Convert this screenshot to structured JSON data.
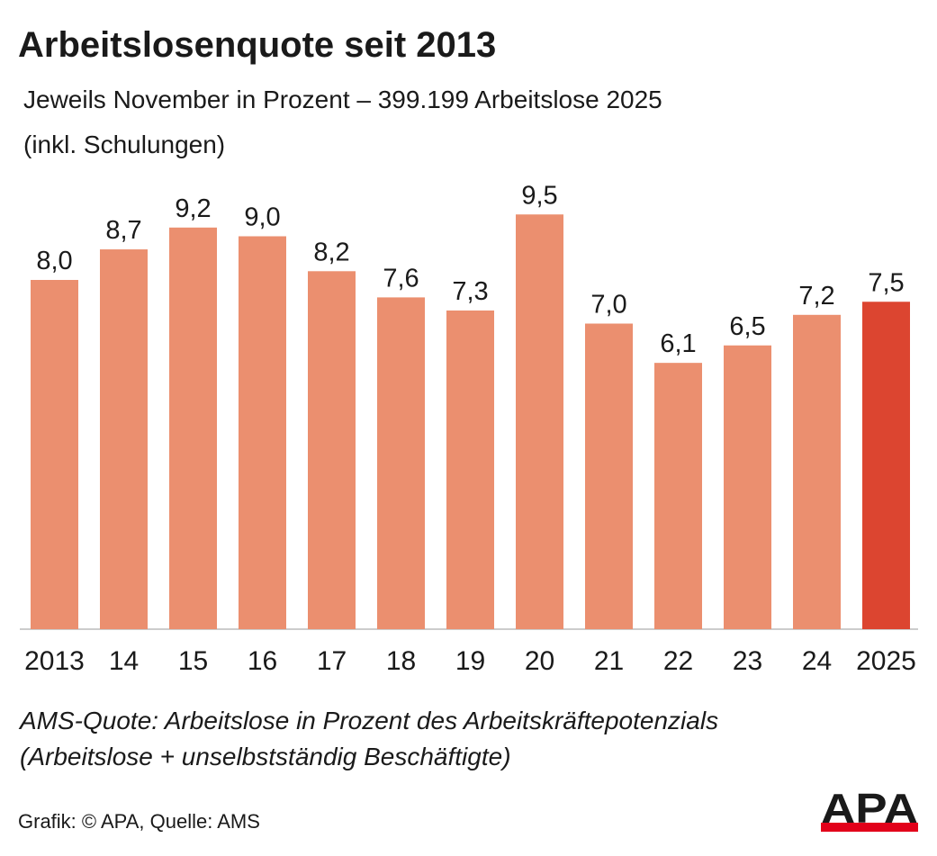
{
  "chart_data": {
    "type": "bar",
    "title": "Arbeitslosenquote seit 2013",
    "subtitle": [
      "Jeweils November in Prozent – 399.199 Arbeitslose 2025",
      "(inkl. Schulungen)"
    ],
    "categories": [
      "2013",
      "14",
      "15",
      "16",
      "17",
      "18",
      "19",
      "20",
      "21",
      "22",
      "23",
      "24",
      "2025"
    ],
    "values": [
      8.0,
      8.7,
      9.2,
      9.0,
      8.2,
      7.6,
      7.3,
      9.5,
      7.0,
      6.1,
      6.5,
      7.2,
      7.5
    ],
    "value_labels": [
      "8,0",
      "8,7",
      "9,2",
      "9,0",
      "8,2",
      "7,6",
      "7,3",
      "9,5",
      "7,0",
      "6,1",
      "6,5",
      "7,2",
      "7,5"
    ],
    "colors": [
      "#eb8f6f",
      "#eb8f6f",
      "#eb8f6f",
      "#eb8f6f",
      "#eb8f6f",
      "#eb8f6f",
      "#eb8f6f",
      "#eb8f6f",
      "#eb8f6f",
      "#eb8f6f",
      "#eb8f6f",
      "#eb8f6f",
      "#dc4530"
    ],
    "ylim": [
      0,
      10
    ],
    "footnote": [
      "AMS-Quote: Arbeitslose in Prozent des Arbeitskräftepotenzials",
      "(Arbeitslose + unselbstständig Beschäftigte)"
    ],
    "source": "Grafik: © APA, Quelle: AMS",
    "logo": "APA"
  }
}
